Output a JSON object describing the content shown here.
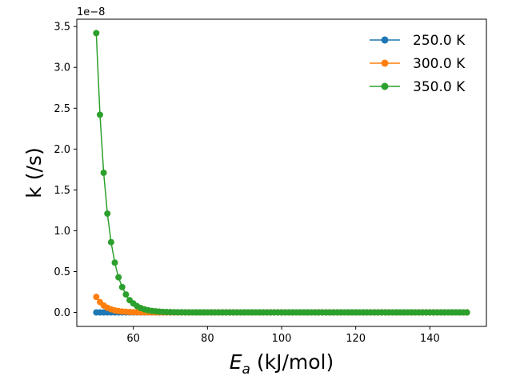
{
  "chart_data": {
    "type": "line",
    "title": "",
    "xlabel_italic": "E",
    "xlabel_sub": "a",
    "xlabel_rest": " (kJ/mol)",
    "ylabel": "k (/s)",
    "y_offset_text": "1e−8",
    "xlim": [
      44.75,
      155.25
    ],
    "ylim": [
      -0.171,
      3.59
    ],
    "y_scale_note": "y values shown in units of 1e-8",
    "x_ticks": [
      60,
      80,
      100,
      120,
      140
    ],
    "x_tick_labels": [
      "60",
      "80",
      "100",
      "120",
      "140"
    ],
    "y_ticks": [
      0.0,
      0.5,
      1.0,
      1.5,
      2.0,
      2.5,
      3.0,
      3.5
    ],
    "y_tick_labels": [
      "0.0",
      "0.5",
      "1.0",
      "1.5",
      "2.0",
      "2.5",
      "3.0",
      "3.5"
    ],
    "x_range": {
      "start": 50,
      "stop": 150,
      "step": 1
    },
    "grid": false,
    "legend_position": "top-right",
    "series": [
      {
        "name": "250.0 K",
        "color": "#1f77b4",
        "temperature_K": 250.0,
        "values_first_points": [
          0.0,
          0.0,
          0.0,
          0.0,
          0.0,
          0.0,
          0.0,
          0.0,
          0.0,
          0.0
        ],
        "remaining_value": 0.0
      },
      {
        "name": "300.0 K",
        "color": "#ff7f0e",
        "temperature_K": 300.0,
        "values_first_points": [
          0.19,
          0.127,
          0.085,
          0.057,
          0.038,
          0.025,
          0.017,
          0.011,
          0.008,
          0.005,
          0.003,
          0.002,
          0.0015,
          0.001,
          0.0007
        ],
        "remaining_value": 0.0
      },
      {
        "name": "350.0 K",
        "color": "#2ca02c",
        "temperature_K": 350.0,
        "values_first_points": [
          3.42,
          2.42,
          1.71,
          1.21,
          0.86,
          0.61,
          0.43,
          0.31,
          0.22,
          0.15,
          0.11,
          0.077,
          0.054,
          0.038,
          0.027,
          0.019,
          0.014,
          0.01,
          0.007,
          0.005,
          0.0035,
          0.0025,
          0.0018,
          0.0012,
          0.0009,
          0.0006
        ],
        "remaining_value": 0.0
      }
    ]
  }
}
